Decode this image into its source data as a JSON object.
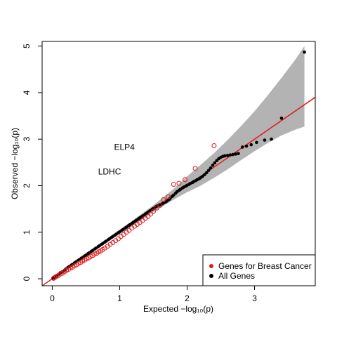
{
  "chart_data": {
    "type": "scatter",
    "title": "",
    "xlabel": "Expected  −log₁₀(p)",
    "ylabel": "Observed  −log₁₀(p)",
    "xlim": [
      -0.15,
      3.9
    ],
    "ylim": [
      -0.15,
      5.1
    ],
    "x_ticks": [
      "0",
      "1",
      "2",
      "3"
    ],
    "y_ticks": [
      "0",
      "1",
      "2",
      "3",
      "4",
      "5"
    ],
    "grid": false,
    "legend_position": "bottom-right",
    "confidence_band": {
      "color": "#b3b3b3",
      "x": [
        0.0,
        0.5,
        1.0,
        1.5,
        1.8,
        2.0,
        2.2,
        2.4,
        2.6,
        2.8,
        3.0,
        3.2,
        3.4,
        3.6,
        3.74
      ],
      "upper": [
        0.02,
        0.53,
        1.05,
        1.58,
        1.93,
        2.2,
        2.45,
        2.7,
        2.98,
        3.28,
        3.6,
        3.95,
        4.32,
        4.7,
        5.0
      ],
      "lower": [
        0.0,
        0.48,
        0.96,
        1.43,
        1.7,
        1.86,
        2.0,
        2.17,
        2.35,
        2.55,
        2.74,
        2.92,
        3.08,
        3.2,
        3.27
      ]
    },
    "reference_line": {
      "color": "#e31a1c",
      "intercept": 0,
      "slope": 1
    },
    "series": [
      {
        "name": "All Genes",
        "color": "#000000",
        "marker": "filled-circle",
        "x": [
          0.01,
          0.03,
          0.05,
          0.08,
          0.1,
          0.12,
          0.15,
          0.18,
          0.2,
          0.23,
          0.25,
          0.28,
          0.3,
          0.33,
          0.35,
          0.38,
          0.4,
          0.43,
          0.45,
          0.48,
          0.5,
          0.53,
          0.55,
          0.58,
          0.6,
          0.63,
          0.65,
          0.68,
          0.7,
          0.73,
          0.75,
          0.78,
          0.8,
          0.83,
          0.85,
          0.88,
          0.9,
          0.93,
          0.95,
          0.98,
          1.0,
          1.03,
          1.05,
          1.08,
          1.1,
          1.13,
          1.15,
          1.18,
          1.2,
          1.23,
          1.25,
          1.28,
          1.3,
          1.33,
          1.35,
          1.38,
          1.4,
          1.43,
          1.45,
          1.48,
          1.5,
          1.53,
          1.55,
          1.58,
          1.6,
          1.63,
          1.65,
          1.68,
          1.7,
          1.73,
          1.75,
          1.78,
          1.8,
          1.83,
          1.85,
          1.88,
          1.9,
          1.93,
          1.95,
          1.98,
          2.0,
          2.03,
          2.05,
          2.08,
          2.1,
          2.13,
          2.15,
          2.18,
          2.2,
          2.23,
          2.26,
          2.29,
          2.32,
          2.35,
          2.38,
          2.41,
          2.44,
          2.47,
          2.5,
          2.53,
          2.56,
          2.6,
          2.64,
          2.68,
          2.72,
          2.76,
          2.82,
          2.88,
          2.95,
          3.03,
          3.15,
          3.25,
          3.4,
          3.74
        ],
        "y": [
          0.01,
          0.03,
          0.05,
          0.08,
          0.1,
          0.13,
          0.15,
          0.18,
          0.21,
          0.24,
          0.26,
          0.29,
          0.31,
          0.34,
          0.36,
          0.39,
          0.41,
          0.44,
          0.46,
          0.49,
          0.51,
          0.54,
          0.56,
          0.59,
          0.61,
          0.64,
          0.66,
          0.69,
          0.71,
          0.74,
          0.76,
          0.79,
          0.81,
          0.84,
          0.86,
          0.89,
          0.91,
          0.94,
          0.96,
          0.99,
          1.01,
          1.04,
          1.06,
          1.09,
          1.11,
          1.14,
          1.16,
          1.19,
          1.21,
          1.24,
          1.26,
          1.29,
          1.31,
          1.34,
          1.36,
          1.39,
          1.41,
          1.44,
          1.46,
          1.49,
          1.51,
          1.54,
          1.56,
          1.58,
          1.59,
          1.61,
          1.63,
          1.65,
          1.67,
          1.7,
          1.73,
          1.77,
          1.8,
          1.84,
          1.87,
          1.9,
          1.92,
          1.95,
          1.97,
          1.99,
          2.01,
          2.03,
          2.05,
          2.07,
          2.09,
          2.11,
          2.13,
          2.15,
          2.17,
          2.2,
          2.24,
          2.28,
          2.33,
          2.38,
          2.44,
          2.49,
          2.54,
          2.58,
          2.61,
          2.63,
          2.64,
          2.65,
          2.66,
          2.67,
          2.68,
          2.69,
          2.83,
          2.85,
          2.88,
          2.93,
          2.98,
          3.0,
          3.45,
          4.87
        ]
      },
      {
        "name": "Genes for Breast Cancer",
        "color": "#e31a1c",
        "marker": "circle",
        "x": [
          0.02,
          0.04,
          0.06,
          0.09,
          0.12,
          0.15,
          0.18,
          0.21,
          0.24,
          0.27,
          0.3,
          0.33,
          0.36,
          0.39,
          0.42,
          0.45,
          0.48,
          0.51,
          0.54,
          0.57,
          0.6,
          0.63,
          0.66,
          0.69,
          0.72,
          0.75,
          0.78,
          0.82,
          0.86,
          0.9,
          0.94,
          0.98,
          1.02,
          1.06,
          1.1,
          1.14,
          1.18,
          1.22,
          1.26,
          1.3,
          1.34,
          1.38,
          1.42,
          1.46,
          1.5,
          1.55,
          1.6,
          1.65,
          1.72,
          1.8,
          1.88,
          1.97,
          2.12,
          2.4
        ],
        "y": [
          0.01,
          0.03,
          0.05,
          0.07,
          0.1,
          0.12,
          0.15,
          0.18,
          0.2,
          0.23,
          0.25,
          0.28,
          0.3,
          0.33,
          0.35,
          0.38,
          0.4,
          0.43,
          0.45,
          0.48,
          0.5,
          0.53,
          0.55,
          0.58,
          0.6,
          0.63,
          0.66,
          0.7,
          0.74,
          0.78,
          0.82,
          0.86,
          0.91,
          0.95,
          1.0,
          1.04,
          1.09,
          1.13,
          1.17,
          1.21,
          1.25,
          1.3,
          1.34,
          1.39,
          1.45,
          1.52,
          1.58,
          1.7,
          1.76,
          2.03,
          2.05,
          2.13,
          2.37,
          2.86
        ]
      }
    ],
    "annotations": [
      {
        "text": "ELP4",
        "x": 1.07,
        "y": 2.83
      },
      {
        "text": "LDHC",
        "x": 0.85,
        "y": 2.3
      }
    ]
  }
}
